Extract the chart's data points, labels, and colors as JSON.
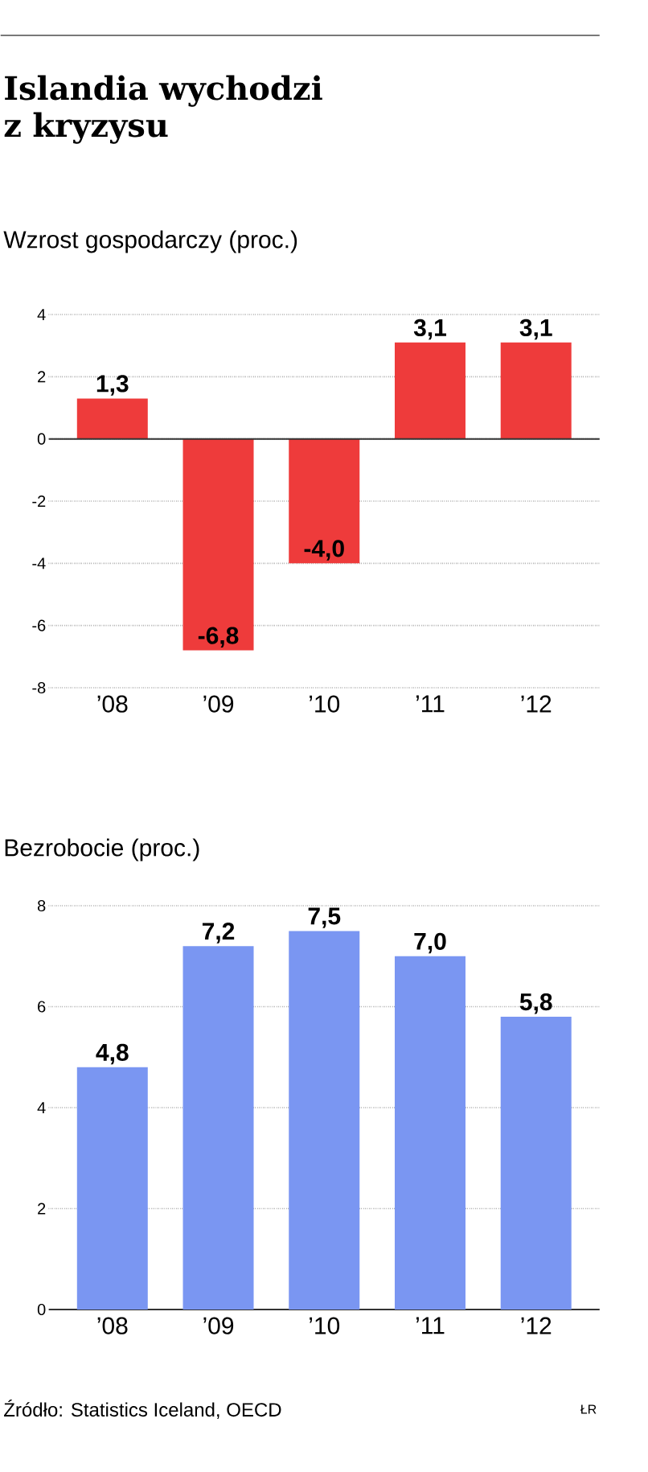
{
  "chart_data": [
    {
      "type": "bar",
      "title": "Islandia wychodzi z kryzysu",
      "subtitle": "Wzrost gospodarczy (proc.)",
      "categories": [
        "’08",
        "’09",
        "’10",
        "’11",
        "’12"
      ],
      "values": [
        1.3,
        -6.8,
        -4.0,
        3.1,
        3.1
      ],
      "value_labels": [
        "1,3",
        "-6,8",
        "-4,0",
        "3,1",
        "3,1"
      ],
      "color": "#ee3b3b",
      "ylim": [
        -8,
        4
      ],
      "yticks": [
        -8,
        -6,
        -4,
        -2,
        0,
        2,
        4
      ],
      "grid": "y",
      "ref_lines": [
        {
          "axis": "y",
          "value": 0,
          "color": "#333333"
        }
      ]
    },
    {
      "type": "bar",
      "title": "Bezrobocie (proc.)",
      "categories": [
        "’08",
        "’09",
        "’10",
        "’11",
        "’12"
      ],
      "values": [
        4.8,
        7.2,
        7.5,
        7.0,
        5.8
      ],
      "value_labels": [
        "4,8",
        "7,2",
        "7,5",
        "7,0",
        "5,8"
      ],
      "color": "#7a96f2",
      "ylim": [
        0,
        8
      ],
      "yticks": [
        0,
        2,
        4,
        6,
        8
      ],
      "grid": "y",
      "annotations": [
        "Źródło: Statistics Iceland, OECD",
        "ŁR"
      ]
    }
  ]
}
